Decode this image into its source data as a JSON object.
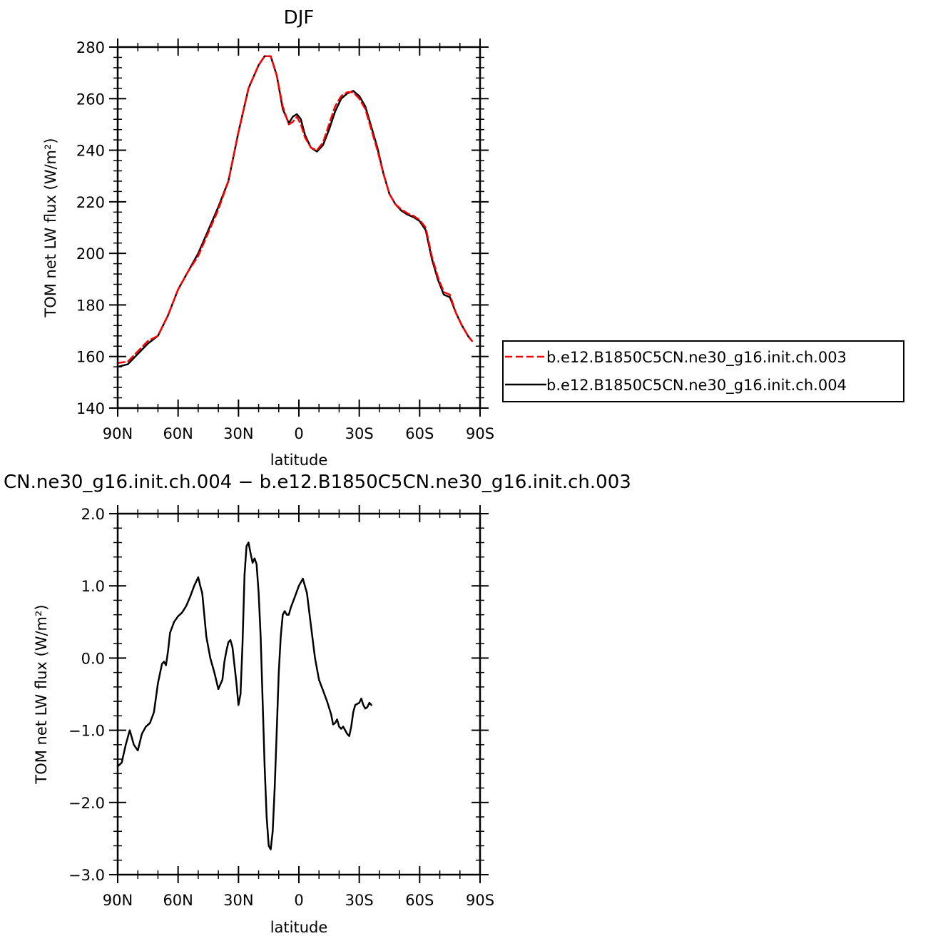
{
  "chart_data": [
    {
      "type": "line",
      "title": "DJF",
      "xlabel": "latitude",
      "ylabel": "TOM net LW flux (W/m²)",
      "xlim": [
        90,
        -90
      ],
      "ylim": [
        140,
        280
      ],
      "x_ticks": [
        {
          "value": 90,
          "label": "90N"
        },
        {
          "value": 60,
          "label": "60N"
        },
        {
          "value": 30,
          "label": "30N"
        },
        {
          "value": 0,
          "label": "0"
        },
        {
          "value": -30,
          "label": "30S"
        },
        {
          "value": -60,
          "label": "60S"
        },
        {
          "value": -90,
          "label": "90S"
        }
      ],
      "y_ticks": [
        {
          "value": 140,
          "label": "140"
        },
        {
          "value": 160,
          "label": "160"
        },
        {
          "value": 180,
          "label": "180"
        },
        {
          "value": 200,
          "label": "200"
        },
        {
          "value": 220,
          "label": "220"
        },
        {
          "value": 240,
          "label": "240"
        },
        {
          "value": 260,
          "label": "260"
        },
        {
          "value": 280,
          "label": "280"
        }
      ],
      "legend": "right",
      "series": [
        {
          "name": "b.e12.B1850C5CN.ne30_g16.init.ch.003",
          "color": "#ff0000",
          "dash": true,
          "points": [
            [
              90,
              157.5
            ],
            [
              85,
              158
            ],
            [
              80,
              162
            ],
            [
              75,
              166
            ],
            [
              70,
              168
            ],
            [
              65,
              176
            ],
            [
              60,
              186
            ],
            [
              55,
              193
            ],
            [
              50,
              199
            ],
            [
              45,
              208
            ],
            [
              40,
              217
            ],
            [
              35,
              228
            ],
            [
              30,
              247
            ],
            [
              25,
              264
            ],
            [
              20,
              273
            ],
            [
              17,
              276.5
            ],
            [
              14,
              276.5
            ],
            [
              11,
              269
            ],
            [
              8,
              257
            ],
            [
              5,
              250
            ],
            [
              3,
              251
            ],
            [
              1,
              253
            ],
            [
              -1,
              250
            ],
            [
              -3,
              245
            ],
            [
              -6,
              241
            ],
            [
              -9,
              240
            ],
            [
              -12,
              243
            ],
            [
              -15,
              250
            ],
            [
              -18,
              257
            ],
            [
              -21,
              261
            ],
            [
              -24,
              262.5
            ],
            [
              -27,
              262.5
            ],
            [
              -30,
              260
            ],
            [
              -33,
              256
            ],
            [
              -36,
              248
            ],
            [
              -39,
              240
            ],
            [
              -42,
              231
            ],
            [
              -45,
              223
            ],
            [
              -48,
              219
            ],
            [
              -51,
              217
            ],
            [
              -54,
              215.5
            ],
            [
              -57,
              214.5
            ],
            [
              -60,
              213
            ],
            [
              -63,
              210
            ],
            [
              -66,
              199
            ],
            [
              -69,
              191
            ],
            [
              -72,
              185
            ],
            [
              -75,
              184
            ],
            [
              -78,
              177
            ],
            [
              -81,
              172
            ],
            [
              -84,
              168
            ],
            [
              -86,
              166
            ]
          ]
        },
        {
          "name": "b.e12.B1850C5CN.ne30_g16.init.ch.004",
          "color": "#000000",
          "dash": false,
          "points": [
            [
              90,
              156
            ],
            [
              85,
              157
            ],
            [
              80,
              161
            ],
            [
              75,
              165
            ],
            [
              70,
              168
            ],
            [
              65,
              176
            ],
            [
              60,
              186
            ],
            [
              55,
              193
            ],
            [
              50,
              200
            ],
            [
              45,
              209
            ],
            [
              40,
              218
            ],
            [
              35,
              228
            ],
            [
              30,
              247
            ],
            [
              25,
              264
            ],
            [
              20,
              273
            ],
            [
              17,
              276.5
            ],
            [
              14,
              276.5
            ],
            [
              11,
              269
            ],
            [
              8,
              256
            ],
            [
              5,
              250.5
            ],
            [
              3,
              253
            ],
            [
              1,
              254
            ],
            [
              -1,
              252
            ],
            [
              -3,
              246
            ],
            [
              -6,
              241
            ],
            [
              -9,
              239.5
            ],
            [
              -12,
              242
            ],
            [
              -15,
              248
            ],
            [
              -18,
              255
            ],
            [
              -21,
              260
            ],
            [
              -24,
              262
            ],
            [
              -27,
              263
            ],
            [
              -30,
              261
            ],
            [
              -33,
              257
            ],
            [
              -36,
              249
            ],
            [
              -39,
              241
            ],
            [
              -42,
              231
            ],
            [
              -45,
              223
            ],
            [
              -48,
              219
            ],
            [
              -51,
              216.5
            ],
            [
              -54,
              215
            ],
            [
              -57,
              214
            ],
            [
              -60,
              212.5
            ],
            [
              -63,
              209
            ],
            [
              -66,
              198
            ],
            [
              -69,
              190
            ],
            [
              -72,
              184
            ],
            [
              -75,
              183
            ],
            [
              -78,
              177
            ],
            [
              -81,
              172
            ],
            [
              -84,
              168
            ],
            [
              -86,
              166
            ]
          ]
        }
      ]
    },
    {
      "type": "line",
      "title": "CN.ne30_g16.init.ch.004 − b.e12.B1850C5CN.ne30_g16.init.ch.003",
      "xlabel": "latitude",
      "ylabel": "TOM net LW flux (W/m²)",
      "xlim": [
        90,
        -90
      ],
      "ylim": [
        -3.0,
        2.0
      ],
      "x_ticks": [
        {
          "value": 90,
          "label": "90N"
        },
        {
          "value": 60,
          "label": "60N"
        },
        {
          "value": 30,
          "label": "30N"
        },
        {
          "value": 0,
          "label": "0"
        },
        {
          "value": -30,
          "label": "30S"
        },
        {
          "value": -60,
          "label": "60S"
        },
        {
          "value": -90,
          "label": "90S"
        }
      ],
      "y_ticks": [
        {
          "value": -3.0,
          "label": "−3.0"
        },
        {
          "value": -2.0,
          "label": "−2.0"
        },
        {
          "value": -1.0,
          "label": "−1.0"
        },
        {
          "value": 0.0,
          "label": "0.0"
        },
        {
          "value": 1.0,
          "label": "1.0"
        },
        {
          "value": 2.0,
          "label": "2.0"
        }
      ],
      "series": [
        {
          "color": "#000000",
          "dash": false,
          "points": [
            [
              90,
              -1.5
            ],
            [
              88,
              -1.45
            ],
            [
              86,
              -1.2
            ],
            [
              84,
              -1.0
            ],
            [
              82,
              -1.2
            ],
            [
              80,
              -1.28
            ],
            [
              78,
              -1.05
            ],
            [
              76,
              -0.95
            ],
            [
              74,
              -0.9
            ],
            [
              72,
              -0.75
            ],
            [
              70,
              -0.35
            ],
            [
              68,
              -0.08
            ],
            [
              67,
              -0.05
            ],
            [
              66,
              -0.1
            ],
            [
              65,
              0.1
            ],
            [
              64,
              0.35
            ],
            [
              62,
              0.5
            ],
            [
              60,
              0.58
            ],
            [
              58,
              0.63
            ],
            [
              56,
              0.72
            ],
            [
              54,
              0.85
            ],
            [
              52,
              1.0
            ],
            [
              50,
              1.12
            ],
            [
              49,
              1.0
            ],
            [
              48,
              0.9
            ],
            [
              47,
              0.6
            ],
            [
              46,
              0.3
            ],
            [
              45,
              0.15
            ],
            [
              44,
              0.0
            ],
            [
              42,
              -0.2
            ],
            [
              40,
              -0.43
            ],
            [
              38,
              -0.3
            ],
            [
              37,
              -0.05
            ],
            [
              36,
              0.1
            ],
            [
              35,
              0.22
            ],
            [
              34,
              0.25
            ],
            [
              33,
              0.15
            ],
            [
              32,
              -0.1
            ],
            [
              31,
              -0.35
            ],
            [
              30,
              -0.65
            ],
            [
              29,
              -0.5
            ],
            [
              28,
              0.2
            ],
            [
              27,
              1.15
            ],
            [
              26,
              1.55
            ],
            [
              25,
              1.6
            ],
            [
              24,
              1.45
            ],
            [
              23,
              1.32
            ],
            [
              22,
              1.38
            ],
            [
              21,
              1.3
            ],
            [
              20,
              0.9
            ],
            [
              19,
              0.3
            ],
            [
              18,
              -0.6
            ],
            [
              17,
              -1.5
            ],
            [
              16,
              -2.2
            ],
            [
              15,
              -2.6
            ],
            [
              14,
              -2.65
            ],
            [
              13,
              -2.4
            ],
            [
              12,
              -1.8
            ],
            [
              11,
              -1.0
            ],
            [
              10,
              -0.2
            ],
            [
              9,
              0.3
            ],
            [
              8,
              0.6
            ],
            [
              7,
              0.65
            ],
            [
              6,
              0.6
            ],
            [
              5,
              0.6
            ],
            [
              4,
              0.7
            ],
            [
              2,
              0.85
            ],
            [
              0,
              1.0
            ],
            [
              -2,
              1.1
            ],
            [
              -4,
              0.9
            ],
            [
              -6,
              0.45
            ],
            [
              -8,
              0.0
            ],
            [
              -10,
              -0.3
            ],
            [
              -12,
              -0.45
            ],
            [
              -14,
              -0.6
            ],
            [
              -16,
              -0.78
            ],
            [
              -17,
              -0.92
            ],
            [
              -18,
              -0.9
            ],
            [
              -19,
              -0.85
            ],
            [
              -20,
              -0.95
            ],
            [
              -21,
              -0.98
            ],
            [
              -22,
              -0.95
            ],
            [
              -23,
              -1.0
            ],
            [
              -24,
              -1.05
            ],
            [
              -25,
              -1.08
            ],
            [
              -26,
              -0.95
            ],
            [
              -27,
              -0.75
            ],
            [
              -28,
              -0.65
            ],
            [
              -30,
              -0.62
            ],
            [
              -31,
              -0.56
            ],
            [
              -32,
              -0.65
            ],
            [
              -33,
              -0.7
            ],
            [
              -34,
              -0.68
            ],
            [
              -35,
              -0.62
            ],
            [
              -36,
              -0.65
            ]
          ]
        }
      ]
    }
  ]
}
